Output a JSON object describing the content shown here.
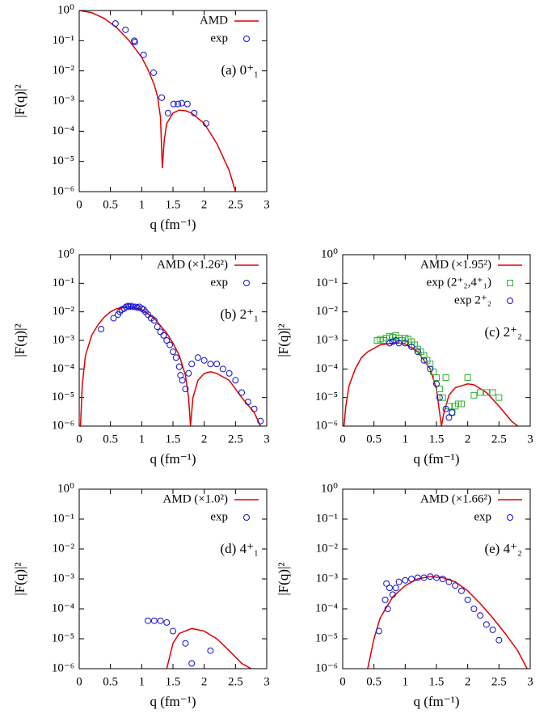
{
  "chart_data": [
    {
      "type": "line",
      "yscale": "log",
      "legend": "upper right",
      "annotation": "(a) 0⁺₁",
      "xlabel": "q (fm⁻¹)",
      "ylabel": "|F(q)|²",
      "xlim": [
        0,
        3
      ],
      "xticks": [
        0,
        0.5,
        1,
        1.5,
        2,
        2.5,
        3
      ],
      "ylim": [
        1e-06,
        1
      ],
      "yticks": [
        {
          "value": 1e-06,
          "label": "10⁻⁶"
        },
        {
          "value": 1e-05,
          "label": "10⁻⁵"
        },
        {
          "value": 0.0001,
          "label": "10⁻⁴"
        },
        {
          "value": 0.001,
          "label": "10⁻³"
        },
        {
          "value": 0.01,
          "label": "10⁻²"
        },
        {
          "value": 0.1,
          "label": "10⁻¹"
        },
        {
          "value": 1,
          "label": "10⁰"
        }
      ],
      "series": [
        {
          "name": "AMD",
          "color": "#e00000",
          "style": "line",
          "x": [
            0,
            0.2,
            0.4,
            0.6,
            0.8,
            1.0,
            1.1,
            1.2,
            1.25,
            1.3,
            1.33,
            1.36,
            1.4,
            1.5,
            1.6,
            1.7,
            1.8,
            2.0,
            2.2,
            2.4,
            2.5
          ],
          "values": [
            1,
            0.85,
            0.55,
            0.27,
            0.1,
            0.028,
            0.011,
            0.0035,
            0.0015,
            0.0003,
            6e-06,
            5e-05,
            0.00018,
            0.0004,
            0.0005,
            0.00048,
            0.0004,
            0.00018,
            4e-05,
            5e-06,
            1e-06
          ]
        },
        {
          "name": "exp",
          "color": "#1010d0",
          "style": "circle",
          "x": [
            0.58,
            0.74,
            0.88,
            0.89,
            1.03,
            1.19,
            1.32,
            1.42,
            1.51,
            1.58,
            1.64,
            1.73,
            1.84,
            2.03
          ],
          "values": [
            0.37,
            0.23,
            0.1,
            0.09,
            0.034,
            0.0087,
            0.0013,
            0.0004,
            0.0008,
            0.0008,
            0.00085,
            0.0008,
            0.0004,
            0.00018
          ]
        }
      ]
    },
    {
      "type": "line",
      "yscale": "log",
      "legend": "upper right",
      "annotation": "(b) 2⁺₁",
      "xlabel": "q (fm⁻¹)",
      "ylabel": "|F(q)|²",
      "xlim": [
        0,
        3
      ],
      "xticks": [
        0,
        0.5,
        1,
        1.5,
        2,
        2.5,
        3
      ],
      "ylim": [
        1e-06,
        1
      ],
      "yticks": [
        {
          "value": 1e-06,
          "label": "10⁻⁶"
        },
        {
          "value": 1e-05,
          "label": "10⁻⁵"
        },
        {
          "value": 0.0001,
          "label": "10⁻⁴"
        },
        {
          "value": 0.001,
          "label": "10⁻³"
        },
        {
          "value": 0.01,
          "label": "10⁻²"
        },
        {
          "value": 0.1,
          "label": "10⁻¹"
        },
        {
          "value": 1,
          "label": "10⁰"
        }
      ],
      "series": [
        {
          "name": "AMD (×1.26²)",
          "color": "#e00000",
          "style": "line",
          "x": [
            0.02,
            0.05,
            0.1,
            0.2,
            0.3,
            0.4,
            0.5,
            0.6,
            0.8,
            1.0,
            1.2,
            1.4,
            1.5,
            1.6,
            1.7,
            1.75,
            1.78,
            1.82,
            1.9,
            2.0,
            2.1,
            2.2,
            2.4,
            2.6,
            2.8,
            2.9
          ],
          "values": [
            1e-06,
            3e-05,
            0.0003,
            0.0015,
            0.0035,
            0.0065,
            0.01,
            0.013,
            0.015,
            0.012,
            0.006,
            0.0018,
            0.0008,
            0.0003,
            6e-05,
            1e-05,
            1e-06,
            1e-05,
            4e-05,
            7e-05,
            8e-05,
            7e-05,
            4e-05,
            1e-05,
            3e-06,
            1e-06
          ]
        },
        {
          "name": "exp",
          "color": "#1010d0",
          "style": "circle",
          "x": [
            0.35,
            0.55,
            0.62,
            0.65,
            0.68,
            0.72,
            0.75,
            0.78,
            0.8,
            0.83,
            0.86,
            0.9,
            0.93,
            0.96,
            1.0,
            1.03,
            1.06,
            1.1,
            1.15,
            1.2,
            1.25,
            1.3,
            1.35,
            1.4,
            1.45,
            1.5,
            1.55,
            1.6,
            1.62,
            1.65,
            1.7,
            1.75,
            1.8,
            1.9,
            2.0,
            2.1,
            2.2,
            2.3,
            2.4,
            2.5,
            2.6,
            2.7,
            2.8,
            2.9
          ],
          "values": [
            0.0025,
            0.006,
            0.008,
            0.01,
            0.012,
            0.013,
            0.015,
            0.016,
            0.015,
            0.016,
            0.015,
            0.015,
            0.014,
            0.015,
            0.013,
            0.012,
            0.01,
            0.008,
            0.006,
            0.005,
            0.003,
            0.002,
            0.0015,
            0.001,
            0.0007,
            0.0004,
            0.00025,
            0.00012,
            6e-05,
            4e-05,
            2e-05,
            7e-05,
            0.00015,
            0.00025,
            0.0002,
            0.00015,
            0.00015,
            0.0001,
            7e-05,
            4e-05,
            1.5e-05,
            7e-06,
            4e-06,
            1.5e-06
          ]
        }
      ]
    },
    {
      "type": "line",
      "yscale": "log",
      "legend": "upper right",
      "annotation": "(c) 2⁺₂",
      "xlabel": "q (fm⁻¹)",
      "ylabel": "|F(q)|²",
      "xlim": [
        0,
        3
      ],
      "xticks": [
        0,
        0.5,
        1,
        1.5,
        2,
        2.5,
        3
      ],
      "ylim": [
        1e-06,
        1
      ],
      "yticks": [
        {
          "value": 1e-06,
          "label": "10⁻⁶"
        },
        {
          "value": 1e-05,
          "label": "10⁻⁵"
        },
        {
          "value": 0.0001,
          "label": "10⁻⁴"
        },
        {
          "value": 0.001,
          "label": "10⁻³"
        },
        {
          "value": 0.01,
          "label": "10⁻²"
        },
        {
          "value": 0.1,
          "label": "10⁻¹"
        },
        {
          "value": 1,
          "label": "10⁰"
        }
      ],
      "series": [
        {
          "name": "AMD (×1.95²)",
          "color": "#e00000",
          "style": "line",
          "x": [
            0.02,
            0.05,
            0.1,
            0.2,
            0.3,
            0.4,
            0.6,
            0.8,
            0.9,
            1.0,
            1.2,
            1.4,
            1.5,
            1.55,
            1.58,
            1.62,
            1.7,
            1.8,
            2.0,
            2.1,
            2.3,
            2.5,
            2.7,
            2.8
          ],
          "values": [
            1e-06,
            5e-06,
            2.5e-05,
            0.0001,
            0.00025,
            0.0004,
            0.0007,
            0.0008,
            0.0008,
            0.00075,
            0.0004,
            0.0001,
            2e-05,
            3e-06,
            1e-06,
            3e-06,
            1.2e-05,
            2.2e-05,
            3e-05,
            2.8e-05,
            1.5e-05,
            5e-06,
            1.5e-06,
            1e-06
          ]
        },
        {
          "name": "exp (2⁺₂,4⁺₁)",
          "color": "#30b030",
          "style": "square",
          "x": [
            0.55,
            0.6,
            0.65,
            0.7,
            0.75,
            0.8,
            0.85,
            0.9,
            0.95,
            1.0,
            1.05,
            1.1,
            1.15,
            1.2,
            1.25,
            1.3,
            1.35,
            1.4,
            1.45,
            1.5,
            1.55,
            1.6,
            1.65,
            1.7,
            1.75,
            1.8,
            1.85,
            1.9,
            2.0,
            2.1,
            2.2,
            2.3,
            2.4,
            2.5
          ],
          "values": [
            0.001,
            0.0011,
            0.001,
            0.0012,
            0.0014,
            0.0013,
            0.0015,
            0.0012,
            0.001,
            0.0012,
            0.0011,
            0.0009,
            0.0007,
            0.0005,
            0.0004,
            0.0003,
            0.0002,
            0.00015,
            8e-05,
            5e-05,
            2e-05,
            1e-05,
            5e-05,
            5e-06,
            3e-06,
            5e-06,
            6e-06,
            6e-06,
            5e-05,
            1.2e-05,
            1.5e-05,
            1.5e-05,
            1.5e-05,
            1e-05
          ]
        },
        {
          "name": "exp 2⁺₂",
          "color": "#1010d0",
          "style": "circle",
          "x": [
            0.75,
            0.8,
            0.85,
            0.9,
            1.0,
            1.1,
            1.2,
            1.3,
            1.4,
            1.5,
            1.55,
            1.65,
            1.7,
            1.75
          ],
          "values": [
            0.0008,
            0.0009,
            0.001,
            0.0008,
            0.0008,
            0.0006,
            0.0004,
            0.0002,
            0.0001,
            3e-05,
            1e-05,
            4e-06,
            2e-06,
            3e-06
          ]
        }
      ]
    },
    {
      "type": "line",
      "yscale": "log",
      "legend": "upper right",
      "annotation": "(d) 4⁺₁",
      "xlabel": "q (fm⁻¹)",
      "ylabel": "|F(q)|²",
      "xlim": [
        0,
        3
      ],
      "xticks": [
        0,
        0.5,
        1,
        1.5,
        2,
        2.5,
        3
      ],
      "ylim": [
        1e-06,
        1
      ],
      "yticks": [
        {
          "value": 1e-06,
          "label": "10⁻⁶"
        },
        {
          "value": 1e-05,
          "label": "10⁻⁵"
        },
        {
          "value": 0.0001,
          "label": "10⁻⁴"
        },
        {
          "value": 0.001,
          "label": "10⁻³"
        },
        {
          "value": 0.01,
          "label": "10⁻²"
        },
        {
          "value": 0.1,
          "label": "10⁻¹"
        },
        {
          "value": 1,
          "label": "10⁰"
        }
      ],
      "series": [
        {
          "name": "AMD (×1.0²)",
          "color": "#e00000",
          "style": "line",
          "x": [
            1.4,
            1.5,
            1.6,
            1.8,
            2.0,
            2.2,
            2.4,
            2.6,
            2.75
          ],
          "values": [
            1e-06,
            7e-06,
            1.5e-05,
            2.2e-05,
            1.8e-05,
            1e-05,
            4e-06,
            1.5e-06,
            1e-06
          ]
        },
        {
          "name": "exp",
          "color": "#1010d0",
          "style": "circle",
          "x": [
            1.1,
            1.2,
            1.3,
            1.4,
            1.5,
            1.7,
            1.8,
            2.1
          ],
          "values": [
            4e-05,
            4e-05,
            4e-05,
            3.5e-05,
            1.8e-05,
            7e-06,
            1.5e-06,
            4e-06
          ]
        }
      ]
    },
    {
      "type": "line",
      "yscale": "log",
      "legend": "upper right",
      "annotation": "(e) 4⁺₂",
      "xlabel": "q (fm⁻¹)",
      "ylabel": "|F(q)|²",
      "xlim": [
        0,
        3
      ],
      "xticks": [
        0,
        0.5,
        1,
        1.5,
        2,
        2.5,
        3
      ],
      "ylim": [
        1e-06,
        1
      ],
      "yticks": [
        {
          "value": 1e-06,
          "label": "10⁻⁶"
        },
        {
          "value": 1e-05,
          "label": "10⁻⁵"
        },
        {
          "value": 0.0001,
          "label": "10⁻⁴"
        },
        {
          "value": 0.001,
          "label": "10⁻³"
        },
        {
          "value": 0.01,
          "label": "10⁻²"
        },
        {
          "value": 0.1,
          "label": "10⁻¹"
        },
        {
          "value": 1,
          "label": "10⁰"
        }
      ],
      "series": [
        {
          "name": "AMD (×1.66²)",
          "color": "#e00000",
          "style": "line",
          "x": [
            0.4,
            0.5,
            0.6,
            0.8,
            1.0,
            1.2,
            1.4,
            1.6,
            1.8,
            2.0,
            2.2,
            2.4,
            2.6,
            2.8,
            2.95
          ],
          "values": [
            1e-06,
            1e-05,
            5e-05,
            0.00025,
            0.0006,
            0.001,
            0.0012,
            0.0011,
            0.0008,
            0.0004,
            0.00015,
            5e-05,
            1.5e-05,
            4e-06,
            1e-06
          ]
        },
        {
          "name": "exp",
          "color": "#1010d0",
          "style": "circle",
          "x": [
            0.58,
            0.68,
            0.7,
            0.72,
            0.75,
            0.8,
            0.85,
            0.9,
            1.0,
            1.1,
            1.2,
            1.3,
            1.4,
            1.5,
            1.6,
            1.7,
            1.8,
            1.9,
            2.0,
            2.1,
            2.2,
            2.3,
            2.4,
            2.5
          ],
          "values": [
            1.8e-05,
            0.0002,
            0.0007,
            0.0001,
            0.0005,
            0.0003,
            0.0005,
            0.0008,
            0.0009,
            0.001,
            0.0011,
            0.0011,
            0.0012,
            0.0011,
            0.001,
            0.0008,
            0.0006,
            0.0004,
            0.0002,
            0.0001,
            6e-05,
            3e-05,
            2e-05,
            9e-06
          ]
        }
      ]
    }
  ]
}
